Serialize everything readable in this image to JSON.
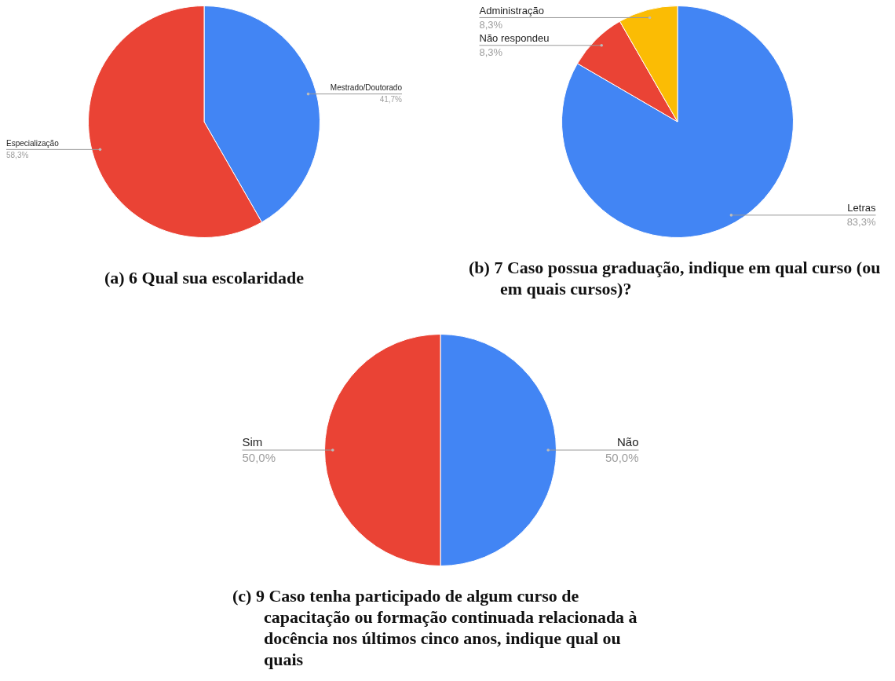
{
  "chart_data": [
    {
      "type": "pie",
      "title": "(a) 6 Qual sua escolaridade",
      "categories": [
        "Mestrado/Doutorado",
        "Especialização"
      ],
      "values": [
        41.7,
        58.3
      ],
      "value_labels": [
        "41,7%",
        "58,3%"
      ],
      "colors": [
        "#4285f4",
        "#ea4335"
      ]
    },
    {
      "type": "pie",
      "title": "(b) 7 Caso possua graduação, indique em qual curso (ou em quais cursos)?",
      "categories": [
        "Letras",
        "Não respondeu",
        "Administração"
      ],
      "values": [
        83.3,
        8.3,
        8.3
      ],
      "value_labels": [
        "83,3%",
        "8,3%",
        "8,3%"
      ],
      "colors": [
        "#4285f4",
        "#ea4335",
        "#fbbc04"
      ]
    },
    {
      "type": "pie",
      "title": "(c) 9 Caso tenha participado de algum curso de capacitação ou formação continuada relacionada à docência nos últimos cinco anos, indique qual ou quais",
      "categories": [
        "Não",
        "Sim"
      ],
      "values": [
        50.0,
        50.0
      ],
      "value_labels": [
        "50,0%",
        "50,0%"
      ],
      "colors": [
        "#4285f4",
        "#ea4335"
      ]
    }
  ]
}
